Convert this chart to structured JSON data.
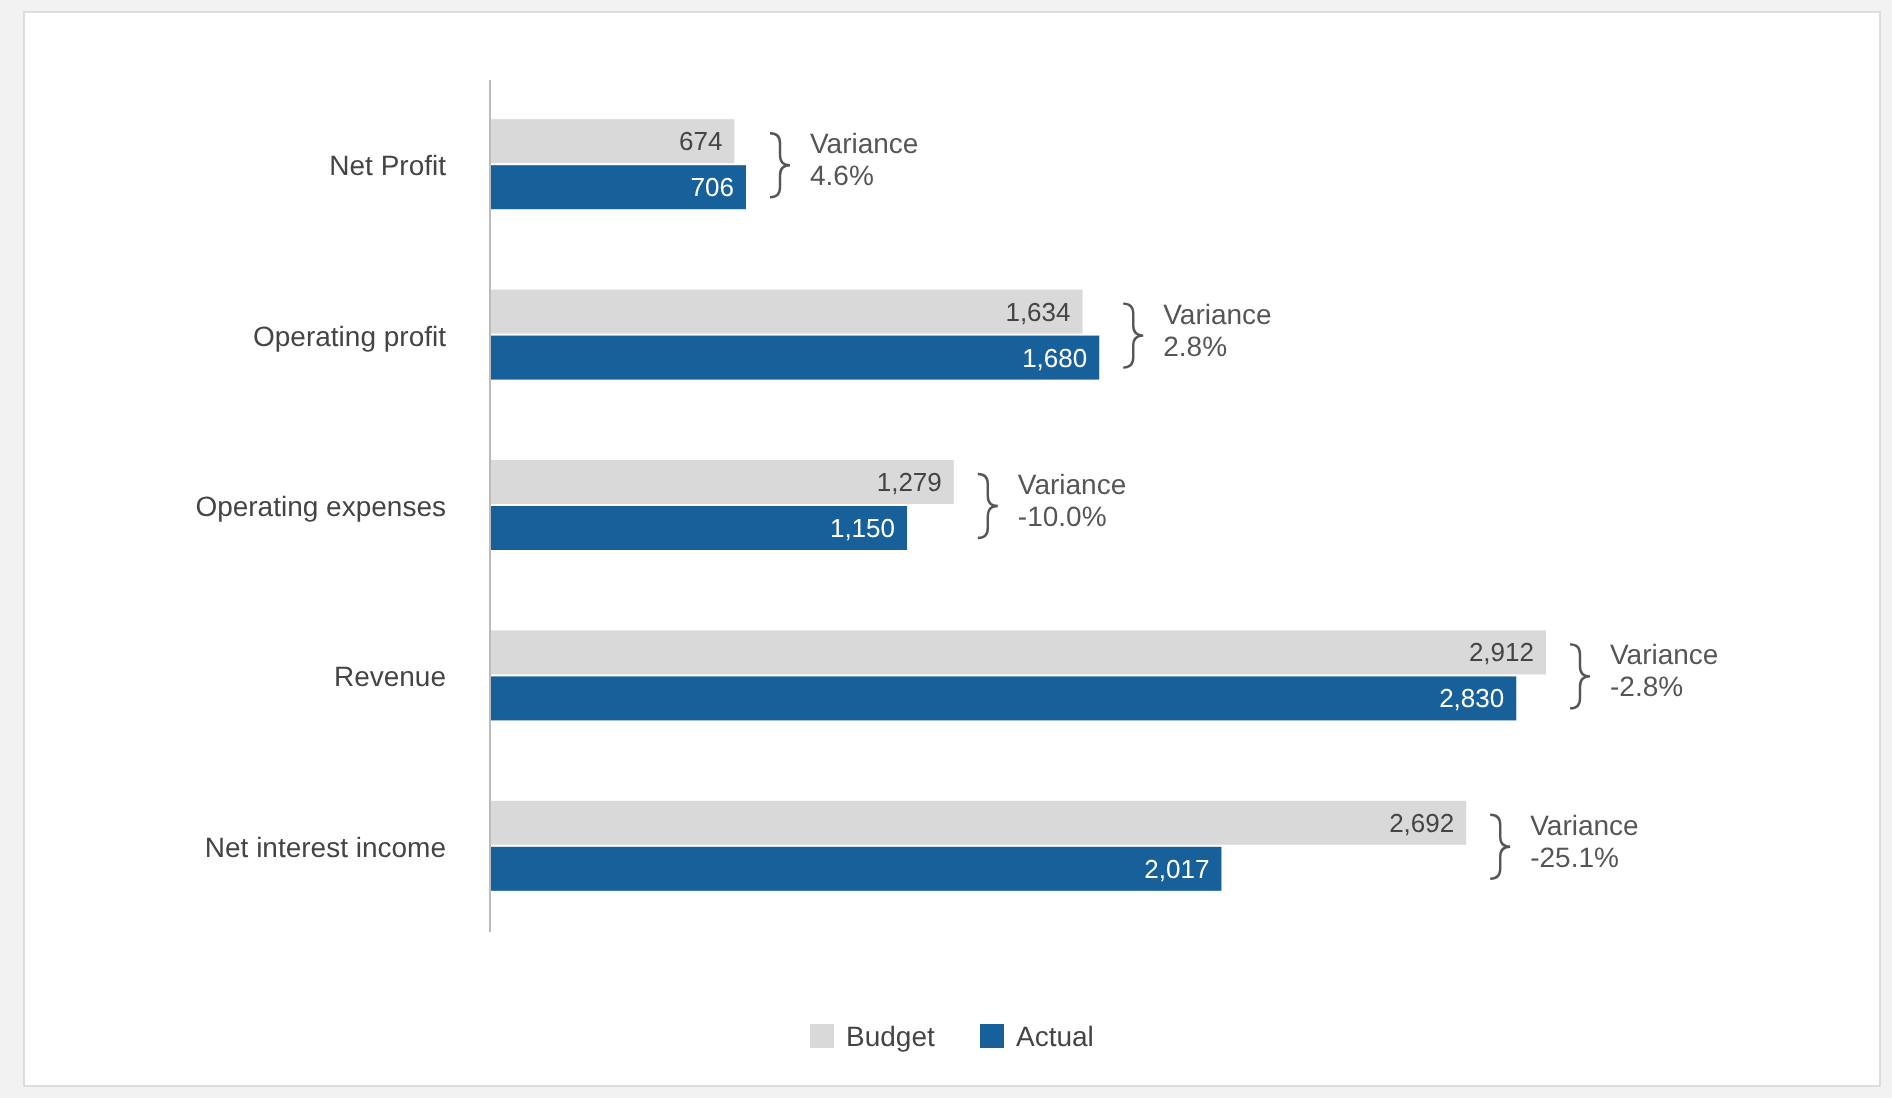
{
  "chart_data": {
    "type": "bar",
    "orientation": "horizontal",
    "categories": [
      "Net Profit",
      "Operating profit",
      "Operating expenses",
      "Revenue",
      "Net interest income"
    ],
    "series": [
      {
        "name": "Budget",
        "color": "#d9d9d9",
        "values": [
          674,
          1634,
          1279,
          2912,
          2692
        ],
        "value_labels": [
          "674",
          "1,634",
          "1,279",
          "2,912",
          "2,692"
        ]
      },
      {
        "name": "Actual",
        "color": "#17609a",
        "values": [
          706,
          1680,
          1150,
          2830,
          2017
        ],
        "value_labels": [
          "706",
          "1,680",
          "1,150",
          "2,830",
          "2,017"
        ]
      }
    ],
    "annotations": [
      "Variance\n4.6%",
      "Variance\n2.8%",
      "Variance\n-10.0%",
      "Variance\n-2.8%",
      "Variance\n-25.1%"
    ],
    "legend": "bottom"
  }
}
